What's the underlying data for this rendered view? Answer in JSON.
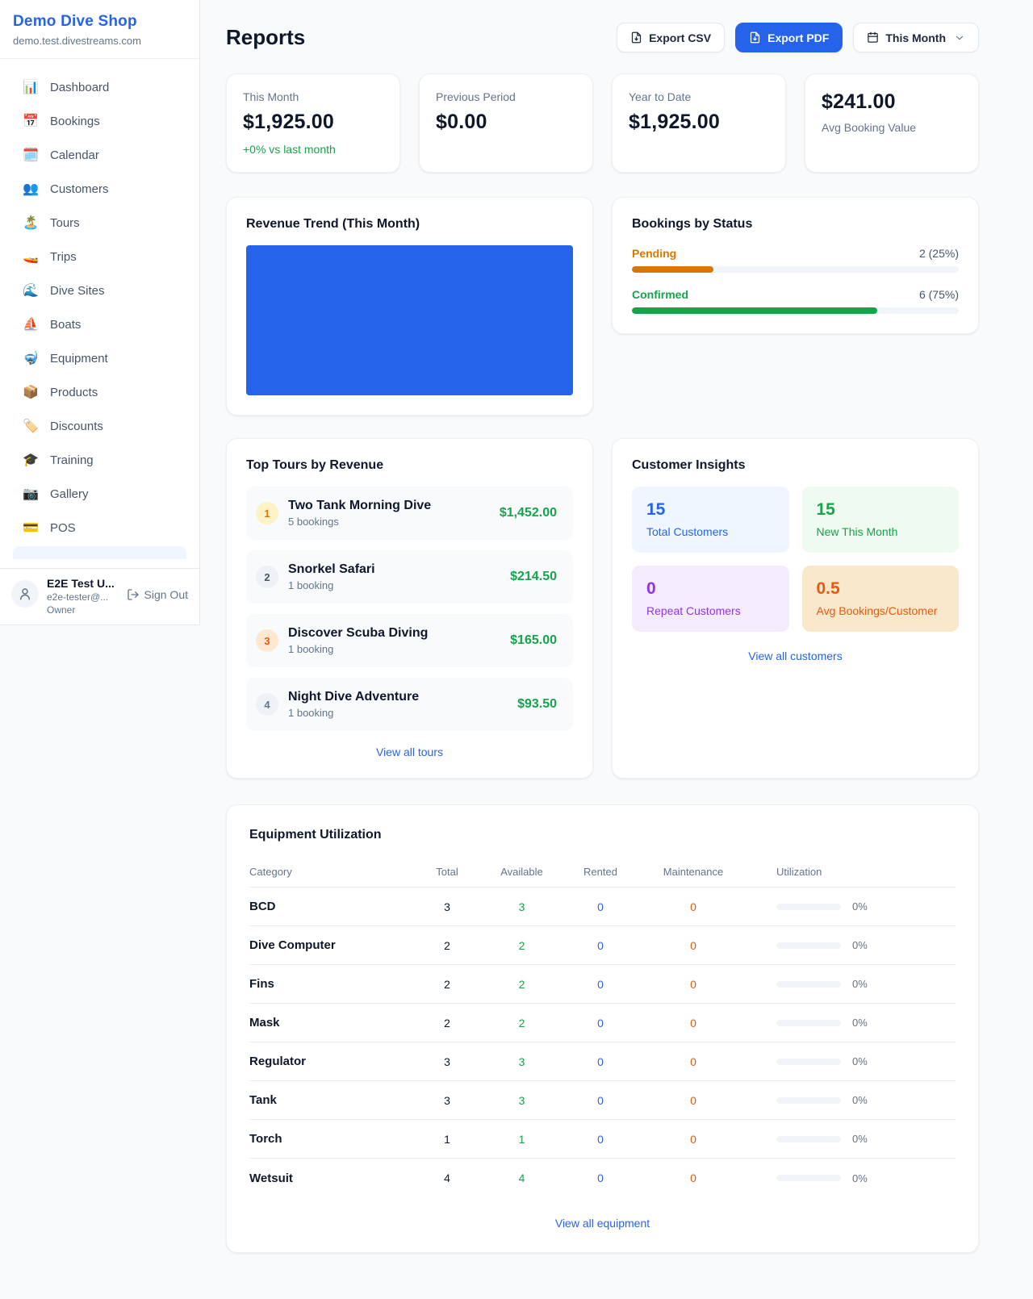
{
  "colors": {
    "accent": "#2563eb",
    "success": "#16a34a",
    "warning": "#d97706",
    "danger_orange": "#ea580c",
    "purple": "#9333ea",
    "chart_fill": "#2563eb"
  },
  "sidebar": {
    "brand": {
      "name": "Demo Dive Shop",
      "domain": "demo.test.divestreams.com"
    },
    "nav": [
      {
        "icon": "📊",
        "label": "Dashboard"
      },
      {
        "icon": "📅",
        "label": "Bookings"
      },
      {
        "icon": "🗓️",
        "label": "Calendar"
      },
      {
        "icon": "👥",
        "label": "Customers"
      },
      {
        "icon": "🏝️",
        "label": "Tours"
      },
      {
        "icon": "🚤",
        "label": "Trips"
      },
      {
        "icon": "🌊",
        "label": "Dive Sites"
      },
      {
        "icon": "⛵",
        "label": "Boats"
      },
      {
        "icon": "🤿",
        "label": "Equipment"
      },
      {
        "icon": "📦",
        "label": "Products"
      },
      {
        "icon": "🏷️",
        "label": "Discounts"
      },
      {
        "icon": "🎓",
        "label": "Training"
      },
      {
        "icon": "📷",
        "label": "Gallery"
      },
      {
        "icon": "💳",
        "label": "POS"
      }
    ],
    "user": {
      "name": "E2E Test U...",
      "email": "e2e-tester@...",
      "role": "Owner",
      "sign_out": "Sign Out"
    }
  },
  "header": {
    "title": "Reports",
    "export_csv": "Export CSV",
    "export_pdf": "Export PDF",
    "period": "This Month"
  },
  "stats": [
    {
      "label": "This Month",
      "value": "$1,925.00",
      "delta": "+0% vs last month"
    },
    {
      "label": "Previous Period",
      "value": "$0.00"
    },
    {
      "label": "Year to Date",
      "value": "$1,925.00"
    },
    {
      "label": "Avg Booking Value",
      "value": "$241.00"
    }
  ],
  "revenue_trend": {
    "title": "Revenue Trend (This Month)"
  },
  "bookings_by_status": {
    "title": "Bookings by Status",
    "rows": [
      {
        "label": "Pending",
        "value": "2 (25%)",
        "pct": 25,
        "color": "#d97706"
      },
      {
        "label": "Confirmed",
        "value": "6 (75%)",
        "pct": 75,
        "color": "#16a34a"
      }
    ]
  },
  "top_tours": {
    "title": "Top Tours by Revenue",
    "items": [
      {
        "rank": "1",
        "name": "Two Tank Morning Dive",
        "bookings": "5 bookings",
        "revenue": "$1,452.00"
      },
      {
        "rank": "2",
        "name": "Snorkel Safari",
        "bookings": "1 booking",
        "revenue": "$214.50"
      },
      {
        "rank": "3",
        "name": "Discover Scuba Diving",
        "bookings": "1 booking",
        "revenue": "$165.00"
      },
      {
        "rank": "4",
        "name": "Night Dive Adventure",
        "bookings": "1 booking",
        "revenue": "$93.50"
      }
    ],
    "view_all": "View all tours"
  },
  "customer_insights": {
    "title": "Customer Insights",
    "tiles": [
      {
        "value": "15",
        "label": "Total Customers",
        "color": "#2563eb"
      },
      {
        "value": "15",
        "label": "New This Month",
        "color": "#16a34a"
      },
      {
        "value": "0",
        "label": "Repeat Customers",
        "color": "#9333ea"
      },
      {
        "value": "0.5",
        "label": "Avg Bookings/Customer",
        "color": "#ea580c"
      }
    ],
    "view_all": "View all customers"
  },
  "equipment": {
    "title": "Equipment Utilization",
    "columns": [
      "Category",
      "Total",
      "Available",
      "Rented",
      "Maintenance",
      "Utilization"
    ],
    "rows": [
      {
        "category": "BCD",
        "total": "3",
        "available": "3",
        "rented": "0",
        "maintenance": "0",
        "utilization_label": "0%",
        "utilization_pct": 0
      },
      {
        "category": "Dive Computer",
        "total": "2",
        "available": "2",
        "rented": "0",
        "maintenance": "0",
        "utilization_label": "0%",
        "utilization_pct": 0
      },
      {
        "category": "Fins",
        "total": "2",
        "available": "2",
        "rented": "0",
        "maintenance": "0",
        "utilization_label": "0%",
        "utilization_pct": 0
      },
      {
        "category": "Mask",
        "total": "2",
        "available": "2",
        "rented": "0",
        "maintenance": "0",
        "utilization_label": "0%",
        "utilization_pct": 0
      },
      {
        "category": "Regulator",
        "total": "3",
        "available": "3",
        "rented": "0",
        "maintenance": "0",
        "utilization_label": "0%",
        "utilization_pct": 0
      },
      {
        "category": "Tank",
        "total": "3",
        "available": "3",
        "rented": "0",
        "maintenance": "0",
        "utilization_label": "0%",
        "utilization_pct": 0
      },
      {
        "category": "Torch",
        "total": "1",
        "available": "1",
        "rented": "0",
        "maintenance": "0",
        "utilization_label": "0%",
        "utilization_pct": 0
      },
      {
        "category": "Wetsuit",
        "total": "4",
        "available": "4",
        "rented": "0",
        "maintenance": "0",
        "utilization_label": "0%",
        "utilization_pct": 0
      }
    ],
    "view_all": "View all equipment"
  }
}
